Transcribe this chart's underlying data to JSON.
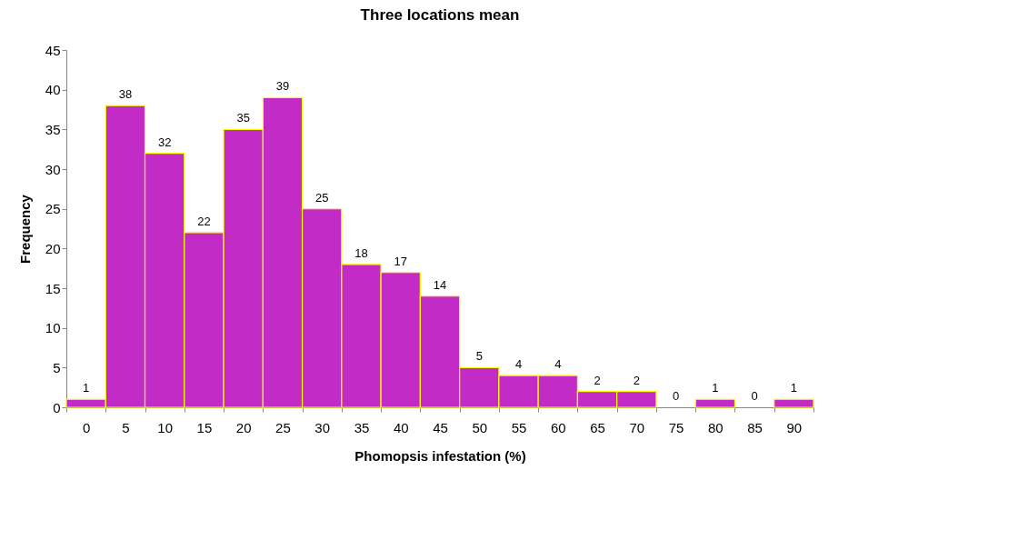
{
  "chart_data": {
    "type": "bar",
    "title": "Three locations mean",
    "xlabel": "Phomopsis infestation (%)",
    "ylabel": "Frequency",
    "categories": [
      "0",
      "5",
      "10",
      "15",
      "20",
      "25",
      "30",
      "35",
      "40",
      "45",
      "50",
      "55",
      "60",
      "65",
      "70",
      "75",
      "80",
      "85",
      "90"
    ],
    "values": [
      1,
      38,
      32,
      22,
      35,
      39,
      25,
      18,
      17,
      14,
      5,
      4,
      4,
      2,
      2,
      0,
      1,
      0,
      1
    ],
    "color": "#c32bc7",
    "ylim": [
      0,
      45
    ],
    "yticks": [
      0,
      5,
      10,
      15,
      20,
      25,
      30,
      35,
      40,
      45
    ],
    "grid": false,
    "data_labels": true
  }
}
